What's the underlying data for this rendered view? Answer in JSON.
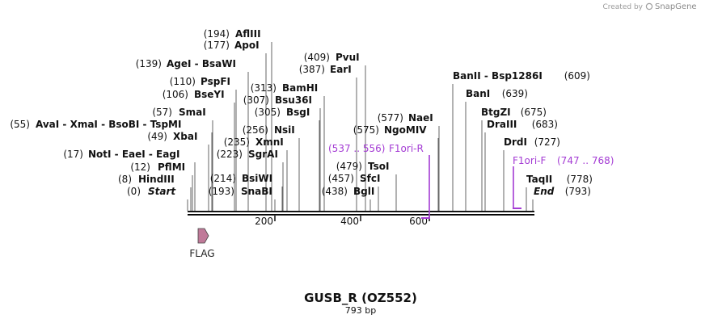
{
  "credit": {
    "text": "Created by",
    "brand": "SnapGene"
  },
  "map": {
    "title": "GUSB_R (OZ552)",
    "length_text": "793 bp"
  },
  "sequence": {
    "length": 793
  },
  "colors": {
    "primer": "#a43cd4",
    "feature_fill": "#c07a99",
    "backbone": "#000000"
  },
  "ticks": [
    {
      "value": 200,
      "label": "200"
    },
    {
      "value": 400,
      "label": "400"
    },
    {
      "value": 600,
      "label": "600"
    }
  ],
  "sites": [
    {
      "id": "s0",
      "pos": 0,
      "pos_label": "(0)",
      "name": "Start",
      "italic": true
    },
    {
      "id": "s1",
      "pos": 8,
      "pos_label": "(8)",
      "name": "HindIII"
    },
    {
      "id": "s2",
      "pos": 12,
      "pos_label": "(12)",
      "name": "PflMI"
    },
    {
      "id": "s3",
      "pos": 17,
      "pos_label": "(17)",
      "name": "NotI  - EaeI  - EagI"
    },
    {
      "id": "s4",
      "pos": 49,
      "pos_label": "(49)",
      "name": "XbaI"
    },
    {
      "id": "s5",
      "pos": 55,
      "pos_label": "(55)",
      "name": "AvaI  - XmaI  - BsoBI - TspMI"
    },
    {
      "id": "s6",
      "pos": 57,
      "pos_label": "(57)",
      "name": "SmaI"
    },
    {
      "id": "s7",
      "pos": 106,
      "pos_label": "(106)",
      "name": "BseYI"
    },
    {
      "id": "s8",
      "pos": 110,
      "pos_label": "(110)",
      "name": "PspFI"
    },
    {
      "id": "s9",
      "pos": 139,
      "pos_label": "(139)",
      "name": "AgeI  - BsaWI"
    },
    {
      "id": "s10",
      "pos": 177,
      "pos_label": "(177)",
      "name": "ApoI"
    },
    {
      "id": "s11",
      "pos": 194,
      "pos_label": "(194)",
      "name": "AflIII"
    },
    {
      "id": "s12",
      "pos": 214,
      "pos_label": "(214)",
      "name": "BsiWI"
    },
    {
      "id": "s13",
      "pos": 223,
      "pos_label": "(223)",
      "name": "SgrAI"
    },
    {
      "id": "s14",
      "pos": 235,
      "pos_label": "(235)",
      "name": "XmnI"
    },
    {
      "id": "s15",
      "pos": 256,
      "pos_label": "(256)",
      "name": "NsiI"
    },
    {
      "id": "s16",
      "pos": 305,
      "pos_label": "(305)",
      "name": "BsgI"
    },
    {
      "id": "s17",
      "pos": 307,
      "pos_label": "(307)",
      "name": "Bsu36I"
    },
    {
      "id": "s18",
      "pos": 313,
      "pos_label": "(313)",
      "name": "BamHI"
    },
    {
      "id": "s19",
      "pos": 387,
      "pos_label": "(387)",
      "name": "EarI"
    },
    {
      "id": "s20",
      "pos": 409,
      "pos_label": "(409)",
      "name": "PvuI"
    },
    {
      "id": "s21",
      "pos": 438,
      "pos_label": "(438)",
      "name": "BglI"
    },
    {
      "id": "s22",
      "pos": 457,
      "pos_label": "(457)",
      "name": "SfcI"
    },
    {
      "id": "s23",
      "pos": 479,
      "pos_label": "(479)",
      "name": "TsoI"
    },
    {
      "id": "s24",
      "pos": 575,
      "pos_label": "(575)",
      "name": "NgoMIV"
    },
    {
      "id": "s25",
      "pos": 577,
      "pos_label": "(577)",
      "name": "NaeI"
    },
    {
      "id": "s26",
      "pos": 609,
      "pos_label": "(609)",
      "name": "BanII  - Bsp1286I"
    },
    {
      "id": "s27",
      "pos": 639,
      "pos_label": "(639)",
      "name": "BanI"
    },
    {
      "id": "s28",
      "pos": 675,
      "pos_label": "(675)",
      "name": "BtgZI"
    },
    {
      "id": "s29",
      "pos": 683,
      "pos_label": "(683)",
      "name": "DraIII"
    },
    {
      "id": "s30",
      "pos": 727,
      "pos_label": "(727)",
      "name": "DrdI"
    },
    {
      "id": "s31",
      "pos": 778,
      "pos_label": "(778)",
      "name": "TaqII"
    },
    {
      "id": "s32",
      "pos": 793,
      "pos_label": "(793)",
      "name": "End",
      "italic": true
    },
    {
      "id": "s33",
      "pos": 193,
      "pos_label": "(193)",
      "name": "SnaBI"
    }
  ],
  "primers": [
    {
      "name": "F1ori-R",
      "range": "(537 .. 556)",
      "start": 537,
      "end": 556,
      "direction": "reverse"
    },
    {
      "name": "F1ori-F",
      "range": "(747 .. 768)",
      "start": 747,
      "end": 768,
      "direction": "forward"
    }
  ],
  "features": [
    {
      "name": "FLAG",
      "start": 24,
      "end": 47,
      "direction": "forward"
    }
  ]
}
